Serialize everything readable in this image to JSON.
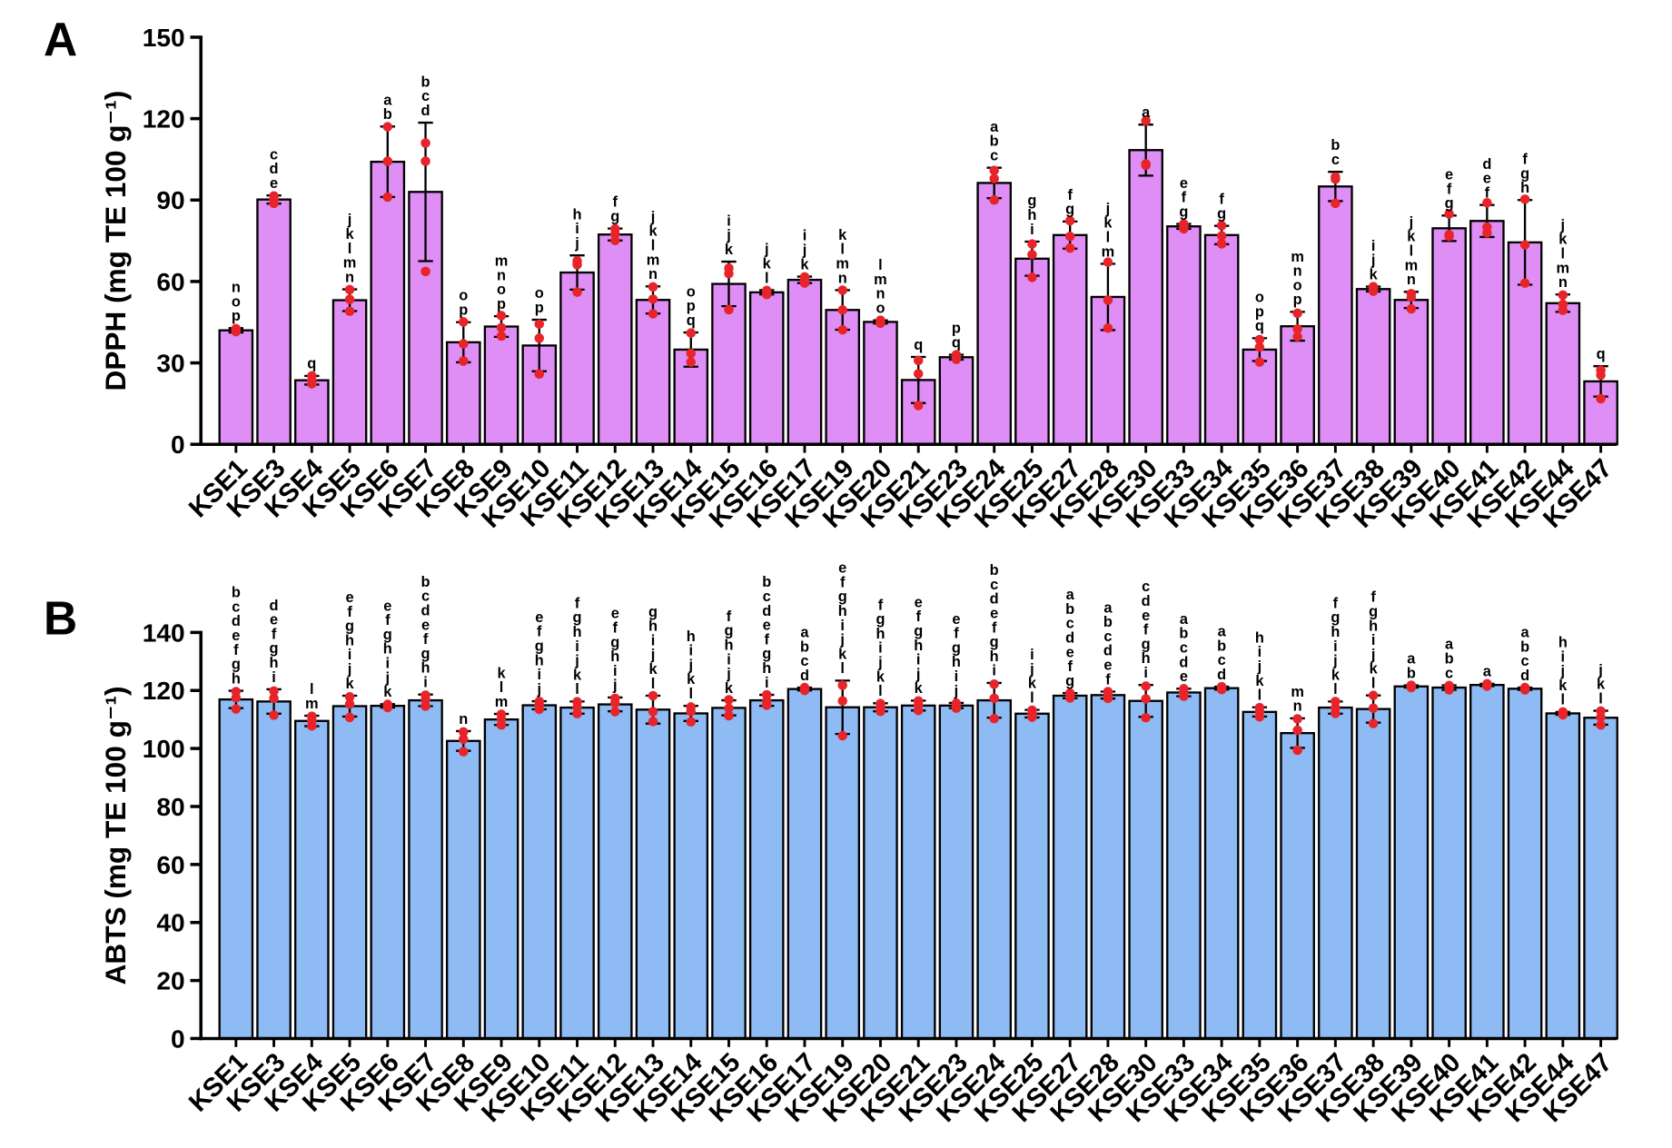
{
  "chart_data": [
    {
      "type": "bar",
      "panel_label": "A",
      "ylabel": "DPPH (mg TE 100 g⁻¹)",
      "ylim": [
        0,
        150
      ],
      "yticks": [
        0,
        30,
        60,
        90,
        120,
        150
      ],
      "grid": false,
      "legend": "none",
      "bar_color": "#de8ef4",
      "point_color": "#e8242b",
      "categories": [
        "KSE1",
        "KSE3",
        "KSE4",
        "KSE5",
        "KSE6",
        "KSE7",
        "KSE8",
        "KSE9",
        "KSE10",
        "KSE11",
        "KSE12",
        "KSE13",
        "KSE14",
        "KSE15",
        "KSE16",
        "KSE17",
        "KSE19",
        "KSE20",
        "KSE21",
        "KSE23",
        "KSE24",
        "KSE25",
        "KSE27",
        "KSE28",
        "KSE30",
        "KSE33",
        "KSE34",
        "KSE35",
        "KSE36",
        "KSE37",
        "KSE38",
        "KSE39",
        "KSE40",
        "KSE41",
        "KSE42",
        "KSE44",
        "KSE47"
      ],
      "values": [
        42.0,
        90.2,
        23.6,
        53.1,
        104.1,
        93.0,
        37.6,
        43.4,
        36.4,
        63.3,
        77.3,
        53.2,
        34.9,
        59.1,
        56.0,
        60.6,
        49.5,
        45.1,
        23.7,
        32.1,
        96.3,
        68.4,
        77.1,
        54.3,
        108.4,
        80.3,
        77.1,
        34.9,
        43.5,
        95.0,
        57.2,
        53.2,
        79.6,
        82.3,
        74.4,
        52.0,
        23.2
      ],
      "error": [
        0.8,
        1.5,
        1.6,
        4.0,
        13.0,
        25.5,
        7.4,
        3.8,
        9.5,
        6.3,
        2.2,
        5.0,
        6.3,
        8.2,
        0.8,
        1.2,
        7.3,
        0.6,
        8.5,
        0.9,
        5.6,
        6.3,
        5.0,
        12.2,
        9.4,
        0.9,
        3.4,
        4.2,
        5.3,
        5.4,
        0.9,
        3.0,
        4.7,
        5.9,
        15.6,
        3.2,
        5.6
      ],
      "replicates": [
        [
          42.6,
          41.9,
          41.5
        ],
        [
          91.5,
          90.3,
          88.8
        ],
        [
          25.2,
          23.3,
          22.3
        ],
        [
          57.0,
          53.4,
          49.0
        ],
        [
          117.0,
          104.3,
          91.1
        ],
        [
          111.0,
          104.3,
          63.7
        ],
        [
          45.1,
          37.0,
          30.7
        ],
        [
          47.4,
          43.0,
          39.9
        ],
        [
          44.3,
          39.1,
          25.9
        ],
        [
          67.6,
          66.2,
          56.1
        ],
        [
          79.4,
          77.5,
          75.1
        ],
        [
          58.0,
          53.5,
          48.1
        ],
        [
          41.0,
          33.5,
          30.3
        ],
        [
          64.9,
          62.9,
          49.6
        ],
        [
          56.7,
          56.1,
          55.2
        ],
        [
          61.7,
          60.8,
          59.4
        ],
        [
          56.8,
          49.5,
          42.2
        ],
        [
          45.7,
          45.1,
          44.6
        ],
        [
          30.9,
          26.0,
          14.3
        ],
        [
          33.0,
          32.0,
          31.3
        ],
        [
          100.9,
          97.9,
          90.0
        ],
        [
          73.8,
          69.9,
          61.5
        ],
        [
          82.4,
          76.6,
          72.3
        ],
        [
          67.1,
          53.1,
          42.8
        ],
        [
          119.2,
          102.8,
          103.3
        ],
        [
          81.2,
          80.2,
          79.4
        ],
        [
          80.6,
          76.8,
          73.9
        ],
        [
          38.6,
          35.8,
          30.3
        ],
        [
          48.3,
          42.5,
          39.7
        ],
        [
          97.7,
          98.5,
          88.8
        ],
        [
          58.1,
          57.1,
          56.4
        ],
        [
          55.5,
          54.2,
          49.9
        ],
        [
          84.9,
          76.6,
          77.3
        ],
        [
          89.0,
          80.0,
          77.9
        ],
        [
          90.3,
          73.5,
          59.4
        ],
        [
          55.0,
          51.6,
          49.4
        ],
        [
          27.3,
          25.5,
          16.8
        ]
      ],
      "letters": [
        [
          "n",
          "o",
          "p"
        ],
        [
          "c",
          "d",
          "e"
        ],
        [
          "q"
        ],
        [
          "j",
          "k",
          "l",
          "m",
          "n"
        ],
        [
          "a",
          "b"
        ],
        [
          "b",
          "c",
          "d"
        ],
        [
          "o",
          "p"
        ],
        [
          "m",
          "n",
          "o",
          "p"
        ],
        [
          "o",
          "p"
        ],
        [
          "h",
          "i",
          "j"
        ],
        [
          "f",
          "g"
        ],
        [
          "j",
          "k",
          "l",
          "m",
          "n"
        ],
        [
          "o",
          "p",
          "q"
        ],
        [
          "i",
          "j",
          "k"
        ],
        [
          "j",
          "k",
          "l"
        ],
        [
          "i",
          "j",
          "k"
        ],
        [
          "k",
          "l",
          "m",
          "n"
        ],
        [
          "l",
          "m",
          "n",
          "o"
        ],
        [
          "q"
        ],
        [
          "p",
          "q"
        ],
        [
          "a",
          "b",
          "c"
        ],
        [
          "g",
          "h",
          "i"
        ],
        [
          "f",
          "g"
        ],
        [
          "j",
          "k",
          "l",
          "m"
        ],
        [
          "a"
        ],
        [
          "e",
          "f",
          "g"
        ],
        [
          "f",
          "g"
        ],
        [
          "o",
          "p",
          "q"
        ],
        [
          "m",
          "n",
          "o",
          "p"
        ],
        [
          "b",
          "c"
        ],
        [
          "i",
          "j",
          "k"
        ],
        [
          "j",
          "k",
          "l",
          "m",
          "n"
        ],
        [
          "e",
          "f",
          "g"
        ],
        [
          "d",
          "e",
          "f"
        ],
        [
          "f",
          "g",
          "h"
        ],
        [
          "j",
          "k",
          "l",
          "m",
          "n"
        ],
        [
          "q"
        ]
      ]
    },
    {
      "type": "bar",
      "panel_label": "B",
      "ylabel": "ABTS (mg TE 100 g⁻¹)",
      "ylim": [
        0,
        140
      ],
      "yticks": [
        0,
        20,
        40,
        60,
        80,
        100,
        120,
        140
      ],
      "grid": false,
      "legend": "none",
      "bar_color": "#8fbbf5",
      "point_color": "#e8242b",
      "categories": [
        "KSE1",
        "KSE3",
        "KSE4",
        "KSE5",
        "KSE6",
        "KSE7",
        "KSE8",
        "KSE9",
        "KSE10",
        "KSE11",
        "KSE12",
        "KSE13",
        "KSE14",
        "KSE15",
        "KSE16",
        "KSE17",
        "KSE19",
        "KSE20",
        "KSE21",
        "KSE23",
        "KSE24",
        "KSE25",
        "KSE27",
        "KSE28",
        "KSE30",
        "KSE33",
        "KSE34",
        "KSE35",
        "KSE36",
        "KSE37",
        "KSE38",
        "KSE39",
        "KSE40",
        "KSE41",
        "KSE42",
        "KSE44",
        "KSE47"
      ],
      "values": [
        116.9,
        116.2,
        109.5,
        114.6,
        114.7,
        116.6,
        102.6,
        110.0,
        114.9,
        114.1,
        115.2,
        113.4,
        112.1,
        114.0,
        116.6,
        120.5,
        114.2,
        114.2,
        114.8,
        114.8,
        116.6,
        112.0,
        118.2,
        118.4,
        116.4,
        119.3,
        120.8,
        112.6,
        105.3,
        114.1,
        113.6,
        121.4,
        121.0,
        121.9,
        120.6,
        112.1,
        110.6
      ],
      "error": [
        3.0,
        4.2,
        1.8,
        3.6,
        0.6,
        2.0,
        3.4,
        1.9,
        1.4,
        2.1,
        2.4,
        4.8,
        2.6,
        2.6,
        1.9,
        0.5,
        9.2,
        1.4,
        1.7,
        0.9,
        6.0,
        1.3,
        0.9,
        1.2,
        5.5,
        1.3,
        0.5,
        1.6,
        5.1,
        2.1,
        4.7,
        0.4,
        0.8,
        0.4,
        0.4,
        0.5,
        2.4
      ],
      "replicates": [
        [
          119.6,
          117.5,
          113.6
        ],
        [
          119.8,
          117.3,
          111.5
        ],
        [
          111.1,
          109.6,
          107.8
        ],
        [
          117.8,
          115.3,
          110.7
        ],
        [
          115.2,
          114.8,
          114.1
        ],
        [
          118.4,
          116.8,
          114.6
        ],
        [
          105.7,
          103.2,
          98.9
        ],
        [
          111.8,
          110.1,
          108.1
        ],
        [
          116.2,
          114.9,
          113.5
        ],
        [
          116.1,
          114.2,
          112.0
        ],
        [
          117.3,
          115.6,
          112.7
        ],
        [
          118.2,
          112.7,
          109.3
        ],
        [
          114.3,
          112.8,
          109.2
        ],
        [
          116.8,
          113.9,
          111.3
        ],
        [
          118.5,
          116.4,
          114.9
        ],
        [
          121.0,
          120.5,
          120.0
        ],
        [
          121.8,
          116.4,
          104.4
        ],
        [
          115.5,
          114.3,
          112.8
        ],
        [
          116.4,
          114.9,
          113.1
        ],
        [
          115.6,
          114.9,
          113.9
        ],
        [
          122.2,
          117.3,
          110.3
        ],
        [
          113.2,
          112.0,
          110.8
        ],
        [
          119.1,
          118.1,
          117.4
        ],
        [
          119.6,
          118.3,
          117.3
        ],
        [
          121.5,
          117.1,
          110.6
        ],
        [
          120.6,
          119.3,
          118.0
        ],
        [
          121.3,
          120.8,
          120.3
        ],
        [
          114.1,
          112.8,
          110.9
        ],
        [
          110.2,
          106.3,
          99.4
        ],
        [
          116.2,
          114.0,
          112.1
        ],
        [
          118.3,
          113.9,
          108.6
        ],
        [
          121.8,
          121.4,
          121.0
        ],
        [
          121.7,
          121.1,
          120.2
        ],
        [
          122.3,
          121.9,
          121.5
        ],
        [
          121.0,
          120.6,
          120.2
        ],
        [
          112.6,
          112.1,
          111.6
        ],
        [
          112.9,
          110.8,
          108.1
        ]
      ],
      "letters": [
        [
          "b",
          "c",
          "d",
          "e",
          "f",
          "g",
          "h"
        ],
        [
          "d",
          "e",
          "f",
          "g",
          "h",
          "i"
        ],
        [
          "l",
          "m"
        ],
        [
          "e",
          "f",
          "g",
          "h",
          "i",
          "j",
          "k"
        ],
        [
          "e",
          "f",
          "g",
          "h",
          "i",
          "j",
          "k"
        ],
        [
          "b",
          "c",
          "d",
          "e",
          "f",
          "g",
          "h",
          "i"
        ],
        [
          "n"
        ],
        [
          "k",
          "l",
          "m"
        ],
        [
          "e",
          "f",
          "g",
          "h",
          "i",
          "j"
        ],
        [
          "f",
          "g",
          "h",
          "i",
          "j",
          "k",
          "l"
        ],
        [
          "e",
          "f",
          "g",
          "h",
          "i",
          "j"
        ],
        [
          "g",
          "h",
          "i",
          "j",
          "k",
          "l"
        ],
        [
          "h",
          "i",
          "j",
          "k",
          "l"
        ],
        [
          "f",
          "g",
          "h",
          "i",
          "j",
          "k"
        ],
        [
          "b",
          "c",
          "d",
          "e",
          "f",
          "g",
          "h",
          "i"
        ],
        [
          "a",
          "b",
          "c",
          "d"
        ],
        [
          "e",
          "f",
          "g",
          "h",
          "i",
          "j",
          "k",
          "l"
        ],
        [
          "f",
          "g",
          "h",
          "i",
          "j",
          "k",
          "l"
        ],
        [
          "e",
          "f",
          "g",
          "h",
          "i",
          "j",
          "k"
        ],
        [
          "e",
          "f",
          "g",
          "h",
          "i",
          "j"
        ],
        [
          "b",
          "c",
          "d",
          "e",
          "f",
          "g",
          "h",
          "i"
        ],
        [
          "i",
          "j",
          "k",
          "l"
        ],
        [
          "a",
          "b",
          "c",
          "d",
          "e",
          "f",
          "g"
        ],
        [
          "a",
          "b",
          "c",
          "d",
          "e",
          "f"
        ],
        [
          "c",
          "d",
          "e",
          "f",
          "g",
          "h",
          "i"
        ],
        [
          "a",
          "b",
          "c",
          "d",
          "e"
        ],
        [
          "a",
          "b",
          "c",
          "d"
        ],
        [
          "h",
          "i",
          "j",
          "k",
          "l"
        ],
        [
          "m",
          "n"
        ],
        [
          "f",
          "g",
          "h",
          "i",
          "j",
          "k",
          "l"
        ],
        [
          "f",
          "g",
          "h",
          "i",
          "j",
          "k",
          "l"
        ],
        [
          "a",
          "b"
        ],
        [
          "a",
          "b",
          "c"
        ],
        [
          "a"
        ],
        [
          "a",
          "b",
          "c",
          "d"
        ],
        [
          "h",
          "i",
          "j",
          "k",
          "l"
        ],
        [
          "j",
          "k",
          "l"
        ]
      ]
    }
  ]
}
